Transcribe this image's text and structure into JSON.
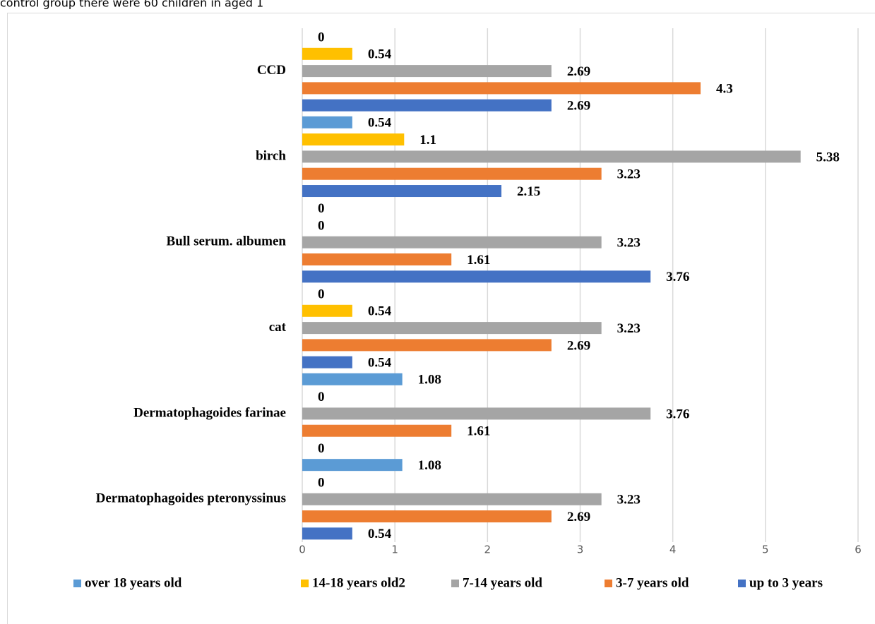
{
  "caption": "control group there were 60 children in aged 1",
  "chart_data": {
    "type": "barh",
    "categories": [
      "CCD",
      "birch",
      "Bull serum. albumen",
      "cat",
      "Dermatophagoides farinae",
      "Dermatophagoides pteronyssinus"
    ],
    "series": [
      {
        "name": "over 18 years old",
        "color": "#5b9bd5",
        "values": [
          0,
          0.54,
          0,
          0,
          1.08,
          1.08
        ]
      },
      {
        "name": "14-18 years old2",
        "color": "#ffc000",
        "values": [
          0.54,
          1.1,
          0,
          0.54,
          0,
          0
        ]
      },
      {
        "name": "7-14 years old",
        "color": "#a5a5a5",
        "values": [
          2.69,
          5.38,
          3.23,
          3.23,
          3.76,
          3.23
        ]
      },
      {
        "name": "3-7 years old",
        "color": "#ed7d31",
        "values": [
          4.3,
          3.23,
          1.61,
          2.69,
          1.61,
          2.69
        ]
      },
      {
        "name": "up to 3 years",
        "color": "#4472c4",
        "values": [
          2.69,
          2.15,
          3.76,
          0.54,
          0,
          0.54
        ]
      }
    ],
    "xlim": [
      0,
      6
    ],
    "xticks": [
      0,
      1,
      2,
      3,
      4,
      5,
      6
    ],
    "grid": true,
    "legend": "bottom"
  }
}
